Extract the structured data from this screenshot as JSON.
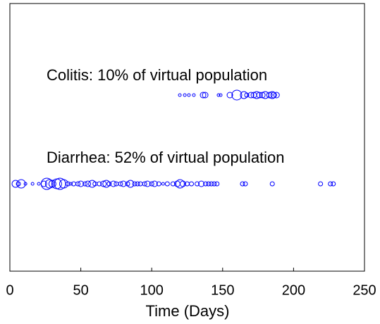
{
  "chart_data": {
    "type": "scatter",
    "xlabel": "Time (Days)",
    "xlim": [
      0,
      250
    ],
    "xticks": [
      0,
      50,
      100,
      150,
      200,
      250
    ],
    "annotations": [
      "Colitis: 10% of virtual population",
      "Diarrhea: 52% of virtual population"
    ],
    "series": [
      {
        "color": "#0000ff",
        "x": [
          119.8,
          123.3,
          126.2,
          129.7,
          136.2,
          137.7,
          147.1,
          148.6,
          155.1,
          160,
          165,
          167,
          170,
          172,
          174,
          176,
          178,
          180,
          183,
          185,
          186,
          188
        ],
        "sizes": [
          2,
          2,
          2,
          2,
          4,
          4,
          2,
          2,
          4,
          7,
          5,
          3,
          4,
          4,
          5,
          4,
          4,
          5,
          4,
          5,
          4,
          4
        ]
      },
      {
        "color": "#0000ff",
        "x": [
          4,
          6,
          8,
          11,
          16,
          20.4,
          24,
          26,
          28,
          30,
          33,
          35.3,
          38,
          41,
          43,
          45,
          48,
          50,
          53,
          55,
          58,
          60,
          63,
          66,
          68,
          70,
          73,
          75,
          78,
          80,
          83,
          85,
          88,
          90,
          92,
          95,
          97,
          100,
          102,
          105,
          108,
          111,
          115,
          118,
          120,
          122,
          125,
          128,
          132,
          135,
          138,
          140,
          142,
          144,
          146,
          164,
          166,
          185,
          219,
          226,
          228
        ],
        "sizes": [
          5,
          3,
          6,
          2,
          2,
          2,
          4,
          8,
          6,
          5,
          7,
          8,
          6,
          3,
          2,
          3,
          3,
          4,
          3,
          4,
          5,
          3,
          3,
          4,
          5,
          3,
          4,
          3,
          3,
          4,
          3,
          5,
          3,
          3,
          3,
          3,
          4,
          3,
          4,
          3,
          2,
          3,
          3,
          4,
          6,
          4,
          3,
          3,
          3,
          4,
          3,
          3,
          3,
          3,
          3,
          3,
          3,
          3,
          3,
          3,
          3
        ]
      }
    ]
  }
}
